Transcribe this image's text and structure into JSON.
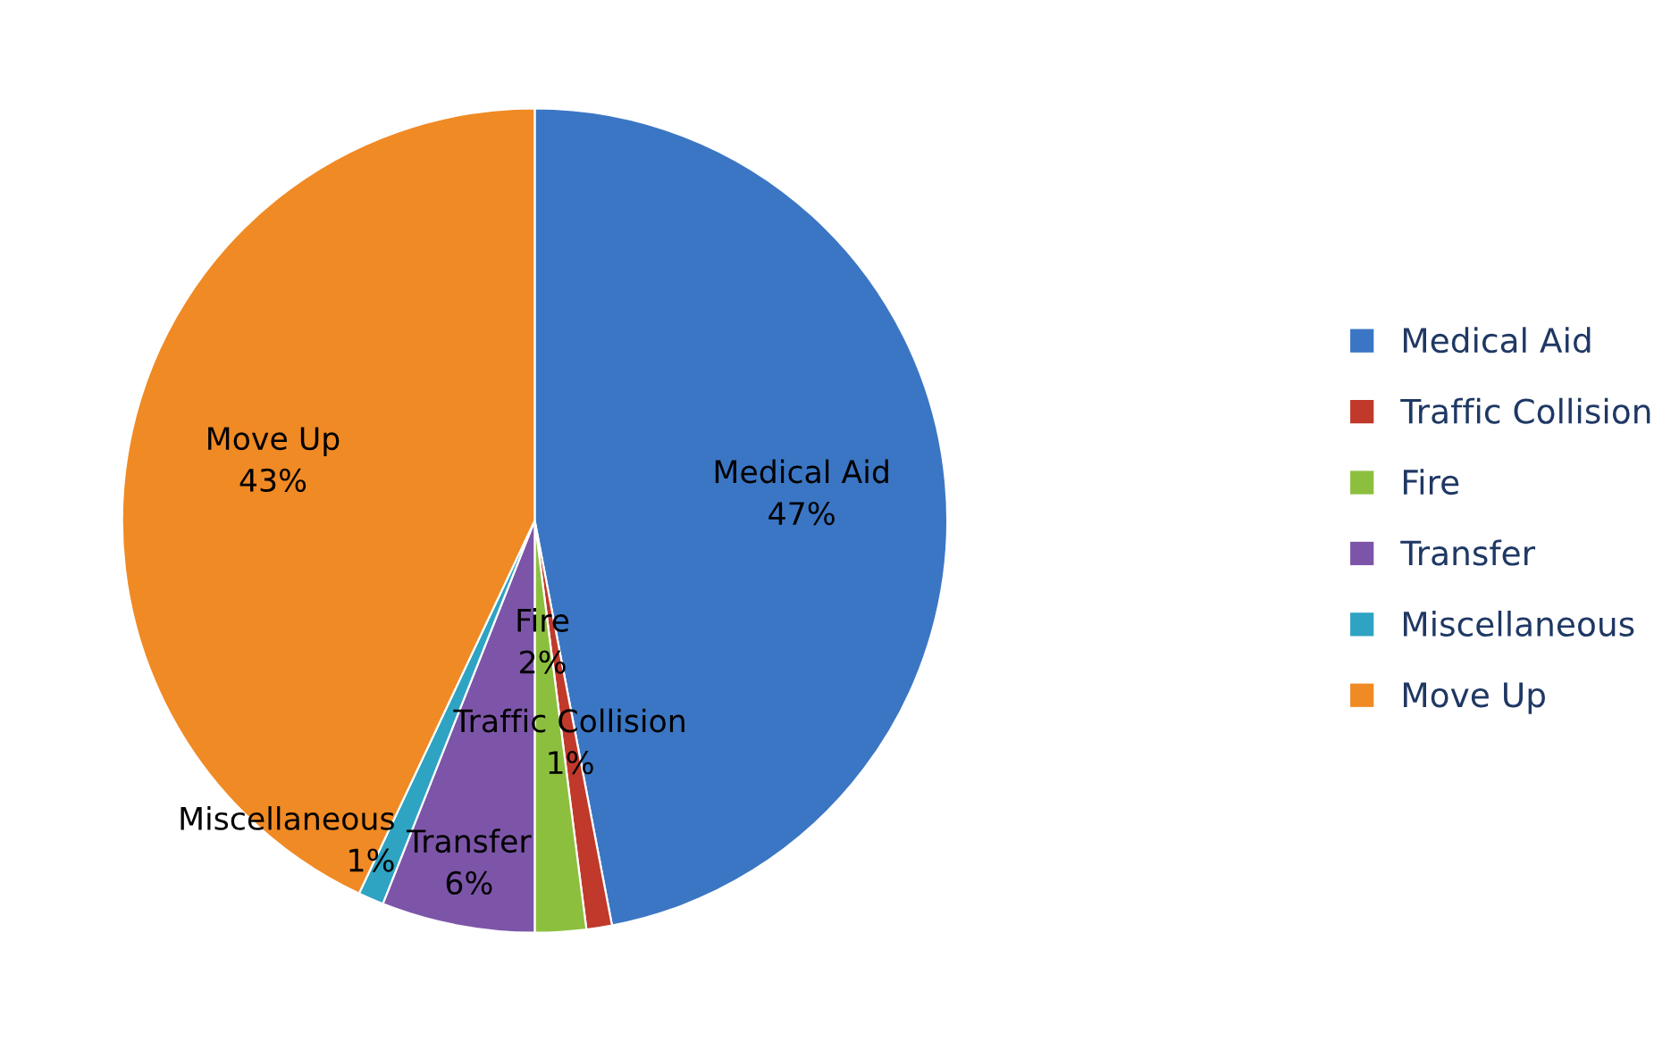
{
  "chart_data": {
    "type": "pie",
    "categories": [
      "Medical Aid",
      "Traffic Collision",
      "Fire",
      "Transfer",
      "Miscellaneous",
      "Move Up"
    ],
    "values": [
      47,
      1,
      2,
      6,
      1,
      43
    ],
    "colors": [
      "#3b76c4",
      "#c0392b",
      "#8dbf3f",
      "#7d55a8",
      "#2fa3c2",
      "#f08a24"
    ],
    "value_labels": [
      "47%",
      "1%",
      "2%",
      "6%",
      "1%",
      "43%"
    ],
    "legend": "right"
  }
}
